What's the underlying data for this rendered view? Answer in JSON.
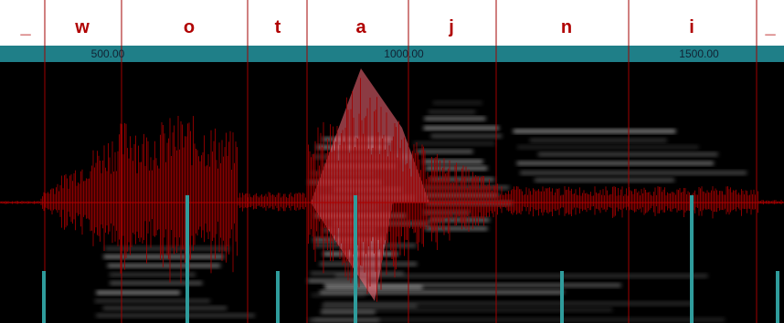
{
  "segments": [
    "_",
    "w",
    "o",
    "t",
    "a",
    "j",
    "n",
    "i",
    "_"
  ],
  "time_ticks": [
    "500.00",
    "1000.00",
    "1500.00"
  ]
}
